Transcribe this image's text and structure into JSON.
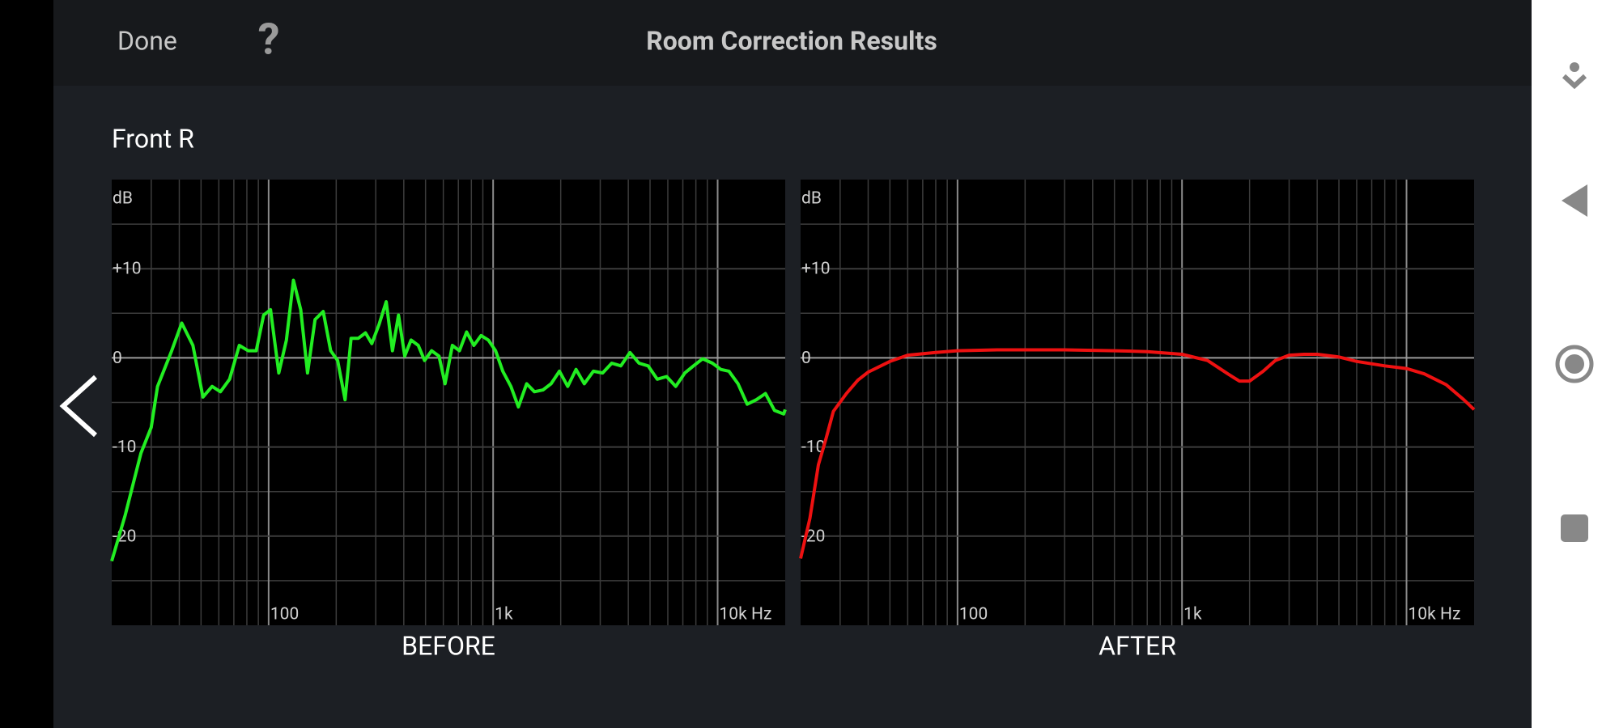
{
  "header": {
    "done": "Done",
    "help": "?",
    "title": "Room Correction Results"
  },
  "channel": "Front R",
  "chart_data": [
    {
      "type": "line",
      "title": "BEFORE",
      "y_label": "dB",
      "x_scale": "log",
      "grid": true,
      "x": [
        20,
        23,
        27,
        30,
        32,
        37,
        41,
        46,
        51,
        56,
        61,
        67,
        74,
        81,
        88,
        95,
        102,
        111,
        120,
        129,
        139,
        149,
        161,
        175,
        189,
        203,
        219,
        233,
        251,
        270,
        288,
        310,
        334,
        356,
        379,
        404,
        431,
        464,
        495,
        532,
        574,
        611,
        658,
        708,
        762,
        821,
        884,
        952,
        1025,
        1104,
        1200,
        1296,
        1410,
        1528,
        1667,
        1813,
        1974,
        2148,
        2340,
        2548,
        2796,
        3073,
        3376,
        3706,
        4068,
        4466,
        4902,
        5380,
        5924,
        6505,
        7142,
        7805,
        8577,
        9483,
        10325,
        11234,
        12330,
        13540,
        14870,
        16330,
        17930,
        19690,
        20000
      ],
      "series": [
        {
          "color": "#22ee22",
          "values": [
            -22.8,
            -17.6,
            -10.7,
            -7.8,
            -3.2,
            0.8,
            3.9,
            1.4,
            -4.4,
            -3.2,
            -3.8,
            -2.4,
            1.4,
            0.8,
            0.8,
            4.8,
            5.4,
            -1.7,
            2.0,
            8.7,
            5.4,
            -1.7,
            4.3,
            5.2,
            0.8,
            -0.3,
            -4.7,
            2.2,
            2.2,
            2.8,
            1.6,
            3.7,
            6.3,
            0.8,
            4.8,
            0.2,
            2.0,
            1.4,
            -0.3,
            0.8,
            0.2,
            -2.9,
            1.4,
            0.8,
            2.9,
            1.4,
            2.5,
            2.0,
            0.8,
            -1.5,
            -3.2,
            -5.5,
            -2.9,
            -3.8,
            -3.6,
            -2.9,
            -1.5,
            -3.2,
            -1.3,
            -2.9,
            -1.5,
            -1.7,
            -0.6,
            -0.9,
            0.6,
            -0.6,
            -0.9,
            -2.4,
            -2.1,
            -3.2,
            -1.7,
            -0.9,
            -0.1,
            -0.6,
            -1.3,
            -1.5,
            -2.9,
            -5.2,
            -4.7,
            -4.0,
            -5.9,
            -6.3,
            -5.8
          ]
        }
      ],
      "xlim": [
        20,
        20000
      ],
      "ylim": [
        -30,
        20
      ],
      "xticks": [
        {
          "value": 100,
          "label": "100"
        },
        {
          "value": 1000,
          "label": "1k"
        },
        {
          "value": 10000,
          "label": "10k Hz"
        }
      ],
      "yticks": [
        {
          "value": 10,
          "label": "+10"
        },
        0,
        -10,
        -20
      ],
      "minor_xticks": [
        30,
        40,
        50,
        60,
        70,
        80,
        90,
        200,
        300,
        400,
        500,
        600,
        700,
        800,
        900,
        2000,
        3000,
        4000,
        5000,
        6000,
        7000,
        8000,
        9000
      ],
      "minor_yticks": [
        -25,
        -15,
        -5,
        5,
        15
      ]
    },
    {
      "type": "line",
      "title": "AFTER",
      "y_label": "dB",
      "x_scale": "log",
      "grid": true,
      "x": [
        20,
        22,
        24,
        26,
        28,
        32,
        36,
        40,
        50,
        60,
        80,
        100,
        150,
        200,
        300,
        500,
        700,
        1000,
        1300,
        1600,
        1800,
        2000,
        2300,
        2600,
        3000,
        3500,
        4000,
        5000,
        6000,
        8000,
        10000,
        12000,
        15000,
        18000,
        20000
      ],
      "series": [
        {
          "color": "#ee1111",
          "values": [
            -22.5,
            -18,
            -12,
            -9,
            -6,
            -4,
            -2.5,
            -1.6,
            -0.4,
            0.3,
            0.6,
            0.8,
            0.9,
            0.9,
            0.9,
            0.8,
            0.7,
            0.4,
            -0.3,
            -1.8,
            -2.6,
            -2.6,
            -1.5,
            -0.3,
            0.3,
            0.4,
            0.4,
            0.1,
            -0.4,
            -0.9,
            -1.2,
            -1.8,
            -3,
            -4.7,
            -5.8
          ]
        }
      ],
      "xlim": [
        20,
        20000
      ],
      "ylim": [
        -30,
        20
      ],
      "xticks": [
        {
          "value": 100,
          "label": "100"
        },
        {
          "value": 1000,
          "label": "1k"
        },
        {
          "value": 10000,
          "label": "10k Hz"
        }
      ],
      "yticks": [
        {
          "value": 10,
          "label": "+10"
        },
        0,
        -10,
        -20
      ],
      "minor_xticks": [
        30,
        40,
        50,
        60,
        70,
        80,
        90,
        200,
        300,
        400,
        500,
        600,
        700,
        800,
        900,
        2000,
        3000,
        4000,
        5000,
        6000,
        7000,
        8000,
        9000
      ],
      "minor_yticks": [
        -25,
        -15,
        -5,
        5,
        15
      ]
    }
  ]
}
